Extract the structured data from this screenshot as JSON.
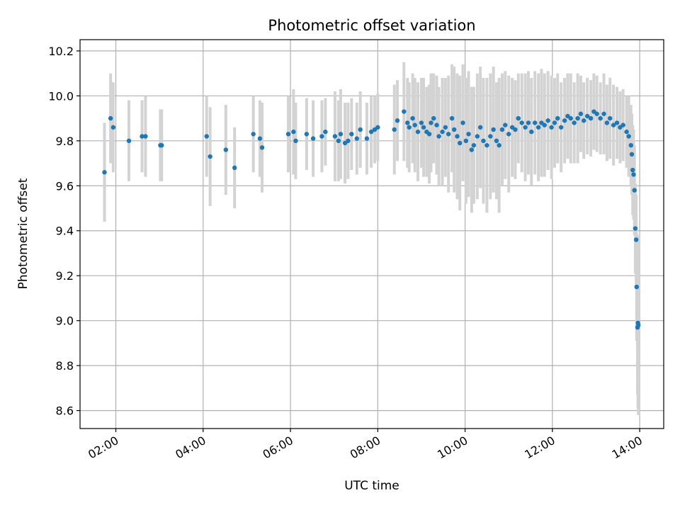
{
  "chart_data": {
    "type": "scatter",
    "title": "Photometric offset variation",
    "xlabel": "UTC time",
    "ylabel": "Photometric offset",
    "x_unit": "hours UTC",
    "xlim": [
      1.18,
      14.55
    ],
    "ylim": [
      8.52,
      10.25
    ],
    "x_ticks": [
      {
        "value": 2,
        "label": "02:00"
      },
      {
        "value": 4,
        "label": "04:00"
      },
      {
        "value": 6,
        "label": "06:00"
      },
      {
        "value": 8,
        "label": "08:00"
      },
      {
        "value": 10,
        "label": "10:00"
      },
      {
        "value": 12,
        "label": "12:00"
      },
      {
        "value": 14,
        "label": "14:00"
      }
    ],
    "y_ticks": [
      {
        "value": 8.6,
        "label": "8.6"
      },
      {
        "value": 8.8,
        "label": "8.8"
      },
      {
        "value": 9.0,
        "label": "9.0"
      },
      {
        "value": 9.2,
        "label": "9.2"
      },
      {
        "value": 9.4,
        "label": "9.4"
      },
      {
        "value": 9.6,
        "label": "9.6"
      },
      {
        "value": 9.8,
        "label": "9.8"
      },
      {
        "value": 10.0,
        "label": "10.0"
      },
      {
        "value": 10.2,
        "label": "10.2"
      }
    ],
    "grid": true,
    "legend": false,
    "colors": {
      "points": "#1f77b4",
      "errorbars": "#d3d3d3",
      "grid": "#b0b0b0",
      "axes": "#000000"
    },
    "series": [
      {
        "x": [
          1.74,
          1.88,
          1.94,
          2.3,
          2.6,
          2.68,
          3.02,
          3.05,
          4.08,
          4.16,
          4.52,
          4.72,
          5.15,
          5.3,
          5.35,
          5.95,
          6.07,
          6.12,
          6.37,
          6.52,
          6.72,
          6.8,
          7.02,
          7.1,
          7.15,
          7.25,
          7.32,
          7.4,
          7.52,
          7.6,
          7.75,
          7.85,
          7.93,
          8.0,
          8.38,
          8.45,
          8.6,
          8.68,
          8.72,
          8.8,
          8.85,
          8.92,
          9.0,
          9.05,
          9.12,
          9.18,
          9.22,
          9.28,
          9.35,
          9.4,
          9.48,
          9.55,
          9.62,
          9.7,
          9.75,
          9.82,
          9.88,
          9.95,
          10.02,
          10.08,
          10.15,
          10.2,
          10.28,
          10.35,
          10.42,
          10.5,
          10.58,
          10.65,
          10.72,
          10.78,
          10.85,
          10.92,
          11.0,
          11.08,
          11.15,
          11.22,
          11.3,
          11.38,
          11.45,
          11.52,
          11.6,
          11.68,
          11.75,
          11.82,
          11.9,
          11.98,
          12.05,
          12.12,
          12.2,
          12.28,
          12.35,
          12.42,
          12.5,
          12.58,
          12.65,
          12.72,
          12.8,
          12.88,
          12.95,
          13.02,
          13.1,
          13.18,
          13.25,
          13.32,
          13.4,
          13.48,
          13.55,
          13.62,
          13.7,
          13.75,
          13.8,
          13.82,
          13.84,
          13.86,
          13.88,
          13.9,
          13.92,
          13.93,
          13.95,
          13.96,
          13.97
        ],
        "y": [
          9.66,
          9.9,
          9.86,
          9.8,
          9.82,
          9.82,
          9.78,
          9.78,
          9.82,
          9.73,
          9.76,
          9.68,
          9.83,
          9.81,
          9.77,
          9.83,
          9.84,
          9.8,
          9.83,
          9.81,
          9.82,
          9.84,
          9.82,
          9.8,
          9.83,
          9.79,
          9.8,
          9.83,
          9.81,
          9.85,
          9.81,
          9.84,
          9.85,
          9.86,
          9.85,
          9.89,
          9.93,
          9.88,
          9.86,
          9.9,
          9.87,
          9.84,
          9.88,
          9.86,
          9.84,
          9.83,
          9.88,
          9.9,
          9.87,
          9.82,
          9.84,
          9.86,
          9.83,
          9.9,
          9.85,
          9.82,
          9.79,
          9.88,
          9.8,
          9.83,
          9.76,
          9.78,
          9.82,
          9.86,
          9.8,
          9.78,
          9.82,
          9.85,
          9.8,
          9.78,
          9.85,
          9.87,
          9.83,
          9.86,
          9.85,
          9.9,
          9.88,
          9.86,
          9.88,
          9.84,
          9.88,
          9.86,
          9.88,
          9.87,
          9.89,
          9.86,
          9.88,
          9.9,
          9.86,
          9.89,
          9.91,
          9.9,
          9.88,
          9.9,
          9.92,
          9.89,
          9.91,
          9.9,
          9.93,
          9.92,
          9.9,
          9.92,
          9.88,
          9.9,
          9.87,
          9.88,
          9.86,
          9.87,
          9.84,
          9.82,
          9.78,
          9.74,
          9.67,
          9.65,
          9.58,
          9.41,
          9.36,
          9.15,
          8.97,
          8.99,
          8.98
        ],
        "yerr": [
          0.22,
          0.2,
          0.2,
          0.18,
          0.16,
          0.18,
          0.16,
          0.16,
          0.18,
          0.22,
          0.2,
          0.18,
          0.17,
          0.17,
          0.2,
          0.17,
          0.19,
          0.17,
          0.16,
          0.17,
          0.16,
          0.15,
          0.2,
          0.18,
          0.2,
          0.18,
          0.17,
          0.16,
          0.16,
          0.17,
          0.16,
          0.16,
          0.15,
          0.15,
          0.2,
          0.18,
          0.22,
          0.2,
          0.2,
          0.2,
          0.21,
          0.22,
          0.2,
          0.22,
          0.2,
          0.22,
          0.22,
          0.2,
          0.22,
          0.22,
          0.24,
          0.22,
          0.26,
          0.24,
          0.28,
          0.28,
          0.3,
          0.26,
          0.28,
          0.28,
          0.28,
          0.26,
          0.28,
          0.27,
          0.28,
          0.3,
          0.28,
          0.28,
          0.26,
          0.3,
          0.25,
          0.24,
          0.26,
          0.22,
          0.22,
          0.2,
          0.22,
          0.24,
          0.23,
          0.24,
          0.23,
          0.24,
          0.24,
          0.23,
          0.22,
          0.23,
          0.2,
          0.2,
          0.2,
          0.19,
          0.19,
          0.2,
          0.18,
          0.2,
          0.17,
          0.17,
          0.17,
          0.17,
          0.17,
          0.17,
          0.16,
          0.18,
          0.17,
          0.18,
          0.18,
          0.16,
          0.16,
          0.16,
          0.16,
          0.18,
          0.18,
          0.18,
          0.2,
          0.2,
          0.2,
          0.2,
          0.2,
          0.24,
          0.3,
          0.38,
          0.4
        ]
      }
    ]
  }
}
